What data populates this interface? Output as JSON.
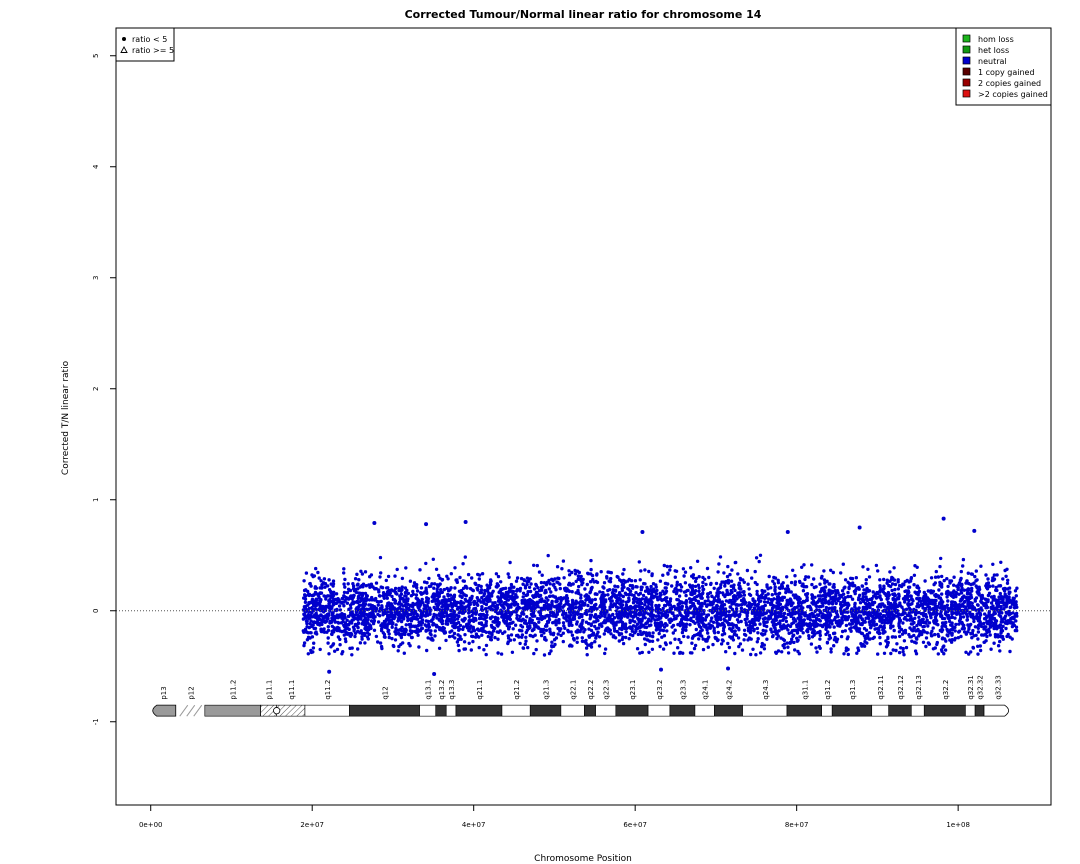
{
  "chart_data": {
    "type": "scatter",
    "title": "Corrected Tumour/Normal linear ratio for chromosome  14",
    "xlabel": "Chromosome Position",
    "ylabel": "Corrected T/N linear ratio",
    "xlim": [
      -4300000,
      111500000
    ],
    "ylim": [
      -1.75,
      5.25
    ],
    "x_ticks": [
      0,
      20000000,
      40000000,
      60000000,
      80000000,
      100000000
    ],
    "x_tick_labels": [
      "0e+00",
      "2e+07",
      "4e+07",
      "6e+07",
      "8e+07",
      "1e+08"
    ],
    "y_ticks": [
      -1,
      0,
      1,
      2,
      3,
      4,
      5
    ],
    "y_tick_labels": [
      "-1",
      "0",
      "1",
      "2",
      "3",
      "4",
      "5"
    ],
    "reference_line": 0,
    "grid": false,
    "point_color": "#0000cc",
    "data_x_range": [
      18900000,
      107300000
    ],
    "baseline": 0.0,
    "typical_spread": [
      -0.4,
      0.5
    ],
    "outliers": [
      {
        "x": 27700000,
        "y": 0.79
      },
      {
        "x": 34100000,
        "y": 0.78
      },
      {
        "x": 39000000,
        "y": 0.8
      },
      {
        "x": 60900000,
        "y": 0.71
      },
      {
        "x": 78900000,
        "y": 0.71
      },
      {
        "x": 87800000,
        "y": 0.75
      },
      {
        "x": 98200000,
        "y": 0.83
      },
      {
        "x": 102000000,
        "y": 0.72
      },
      {
        "x": 22100000,
        "y": -0.55
      },
      {
        "x": 35100000,
        "y": -0.57
      },
      {
        "x": 63200000,
        "y": -0.53
      },
      {
        "x": 71500000,
        "y": -0.52
      }
    ],
    "shape_legend": {
      "position": "top-left",
      "entries": [
        {
          "symbol": "dot",
          "label": "ratio < 5"
        },
        {
          "symbol": "triangle",
          "label": "ratio >= 5"
        }
      ]
    },
    "legend": {
      "position": "top-right",
      "entries": [
        {
          "label": "hom loss",
          "color": "#1db51d"
        },
        {
          "label": "het loss",
          "color": "#129912"
        },
        {
          "label": "neutral",
          "color": "#0000cc"
        },
        {
          "label": "1 copy gained",
          "color": "#5a0000"
        },
        {
          "label": "2 copies gained",
          "color": "#990000"
        },
        {
          "label": ">2 copies gained",
          "color": "#dd1111"
        }
      ]
    },
    "ideogram": {
      "y_level": -0.9,
      "bands": [
        {
          "name": "p13",
          "start": 0,
          "end": 3100000,
          "stain": "gvar"
        },
        {
          "name": "p12",
          "start": 3100000,
          "end": 6700000,
          "stain": "stalk"
        },
        {
          "name": "p11.2",
          "start": 6700000,
          "end": 13600000,
          "stain": "gvar"
        },
        {
          "name": "p11.1",
          "start": 13600000,
          "end": 15600000,
          "stain": "acen"
        },
        {
          "name": "q11.1",
          "start": 15600000,
          "end": 19100000,
          "stain": "acen"
        },
        {
          "name": "q11.2",
          "start": 19100000,
          "end": 24600000,
          "stain": "gneg"
        },
        {
          "name": "q12",
          "start": 24600000,
          "end": 33300000,
          "stain": "gpos"
        },
        {
          "name": "q13.1",
          "start": 33300000,
          "end": 35300000,
          "stain": "gneg"
        },
        {
          "name": "q13.2",
          "start": 35300000,
          "end": 36600000,
          "stain": "gpos"
        },
        {
          "name": "q13.3",
          "start": 36600000,
          "end": 37800000,
          "stain": "gneg"
        },
        {
          "name": "q21.1",
          "start": 37800000,
          "end": 43500000,
          "stain": "gpos"
        },
        {
          "name": "q21.2",
          "start": 43500000,
          "end": 47000000,
          "stain": "gneg"
        },
        {
          "name": "q21.3",
          "start": 47000000,
          "end": 50800000,
          "stain": "gpos"
        },
        {
          "name": "q22.1",
          "start": 50800000,
          "end": 53700000,
          "stain": "gneg"
        },
        {
          "name": "q22.2",
          "start": 53700000,
          "end": 55100000,
          "stain": "gpos"
        },
        {
          "name": "q22.3",
          "start": 55100000,
          "end": 57600000,
          "stain": "gneg"
        },
        {
          "name": "q23.1",
          "start": 57600000,
          "end": 61600000,
          "stain": "gpos"
        },
        {
          "name": "q23.2",
          "start": 61600000,
          "end": 64300000,
          "stain": "gneg"
        },
        {
          "name": "q23.3",
          "start": 64300000,
          "end": 67400000,
          "stain": "gpos"
        },
        {
          "name": "q24.1",
          "start": 67400000,
          "end": 69800000,
          "stain": "gneg"
        },
        {
          "name": "q24.2",
          "start": 69800000,
          "end": 73300000,
          "stain": "gpos"
        },
        {
          "name": "q24.3",
          "start": 73300000,
          "end": 78800000,
          "stain": "gneg"
        },
        {
          "name": "q31.1",
          "start": 78800000,
          "end": 83100000,
          "stain": "gpos"
        },
        {
          "name": "q31.2",
          "start": 83100000,
          "end": 84400000,
          "stain": "gneg"
        },
        {
          "name": "q31.3",
          "start": 84400000,
          "end": 89300000,
          "stain": "gpos"
        },
        {
          "name": "q32.11",
          "start": 89300000,
          "end": 91400000,
          "stain": "gneg"
        },
        {
          "name": "q32.12",
          "start": 91400000,
          "end": 94200000,
          "stain": "gpos"
        },
        {
          "name": "q32.13",
          "start": 94200000,
          "end": 95800000,
          "stain": "gneg"
        },
        {
          "name": "q32.2",
          "start": 95800000,
          "end": 100900000,
          "stain": "gpos"
        },
        {
          "name": "q32.31",
          "start": 100900000,
          "end": 102100000,
          "stain": "gneg"
        },
        {
          "name": "q32.32",
          "start": 102100000,
          "end": 103200000,
          "stain": "gpos"
        },
        {
          "name": "q32.33",
          "start": 103200000,
          "end": 106500000,
          "stain": "gneg"
        }
      ]
    }
  }
}
